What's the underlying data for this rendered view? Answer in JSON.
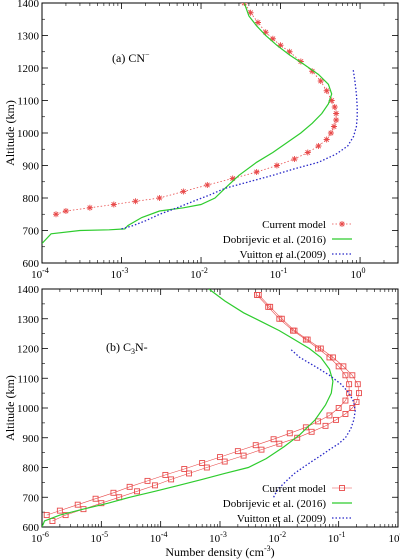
{
  "chart_data": [
    {
      "type": "line",
      "panel_label": "(a) CN",
      "panel_label_sup": "−",
      "ylabel": "Altitude (km)",
      "xlabel": "",
      "xscale": "log",
      "xlim": [
        0.0001,
        3
      ],
      "ylim": [
        600,
        1400
      ],
      "xticks": [
        {
          "value": 0.0001,
          "label_base": "10",
          "label_exp": "-4"
        },
        {
          "value": 0.001,
          "label_base": "10",
          "label_exp": "-3"
        },
        {
          "value": 0.01,
          "label_base": "10",
          "label_exp": "-2"
        },
        {
          "value": 0.1,
          "label_base": "10",
          "label_exp": "-1"
        },
        {
          "value": 1,
          "label_base": "10",
          "label_exp": "0"
        }
      ],
      "yticks": [
        600,
        700,
        800,
        900,
        1000,
        1100,
        1200,
        1300,
        1400
      ],
      "grid": false,
      "legend_position": "bottom-right",
      "series": [
        {
          "name": "Current model",
          "color": "#e84a4a",
          "style": "dotted-asterisk",
          "x": [
            0.00015,
            0.0002,
            0.0004,
            0.0008,
            0.0015,
            0.003,
            0.006,
            0.012,
            0.025,
            0.05,
            0.09,
            0.15,
            0.22,
            0.3,
            0.38,
            0.43,
            0.47,
            0.5,
            0.5,
            0.48,
            0.44,
            0.38,
            0.32,
            0.25,
            0.18,
            0.13,
            0.1,
            0.08,
            0.065,
            0.052,
            0.042,
            0.035
          ],
          "y": [
            750,
            760,
            770,
            780,
            790,
            800,
            820,
            840,
            860,
            880,
            900,
            920,
            940,
            960,
            980,
            1000,
            1020,
            1040,
            1060,
            1080,
            1100,
            1130,
            1160,
            1190,
            1220,
            1250,
            1270,
            1290,
            1310,
            1340,
            1370,
            1400
          ]
        },
        {
          "name": "Dobrijevic et al. (2016)",
          "color": "#2ecc2e",
          "style": "solid",
          "x": [
            0.0001,
            0.00013,
            0.0003,
            0.0007,
            0.0011,
            0.0012,
            0.0018,
            0.003,
            0.006,
            0.01,
            0.015,
            0.02,
            0.03,
            0.05,
            0.08,
            0.12,
            0.18,
            0.25,
            0.33,
            0.4,
            0.44,
            0.4,
            0.3,
            0.2,
            0.13,
            0.09,
            0.065,
            0.05,
            0.04,
            0.035
          ],
          "y": [
            660,
            690,
            700,
            702,
            705,
            715,
            740,
            760,
            770,
            780,
            800,
            830,
            870,
            910,
            940,
            970,
            1000,
            1030,
            1060,
            1090,
            1120,
            1150,
            1180,
            1210,
            1240,
            1270,
            1300,
            1330,
            1360,
            1400
          ]
        },
        {
          "name": "Vuitton et al.(2009)",
          "color": "#2828c8",
          "style": "dotted",
          "x": [
            0.001,
            0.0014,
            0.002,
            0.003,
            0.005,
            0.008,
            0.013,
            0.02,
            0.04,
            0.08,
            0.15,
            0.3,
            0.5,
            0.7,
            0.83,
            0.9,
            0.92,
            0.92,
            0.9,
            0.86,
            0.82
          ],
          "y": [
            705,
            715,
            730,
            750,
            770,
            790,
            810,
            830,
            850,
            870,
            890,
            910,
            935,
            960,
            990,
            1020,
            1050,
            1080,
            1120,
            1160,
            1195
          ]
        }
      ]
    },
    {
      "type": "line",
      "panel_label": "(b) C",
      "panel_label_sub": "3",
      "panel_label_end": "N-",
      "ylabel": "Altitude (km)",
      "xlabel": "Number density (cm",
      "xlabel_sup": "-3",
      "xlabel_end": ")",
      "xscale": "log",
      "xlim": [
        1e-06,
        1
      ],
      "ylim": [
        600,
        1400
      ],
      "xticks": [
        {
          "value": 1e-06,
          "label_base": "10",
          "label_exp": "-6"
        },
        {
          "value": 1e-05,
          "label_base": "10",
          "label_exp": "-5"
        },
        {
          "value": 0.0001,
          "label_base": "10",
          "label_exp": "-4"
        },
        {
          "value": 0.001,
          "label_base": "10",
          "label_exp": "-3"
        },
        {
          "value": 0.01,
          "label_base": "10",
          "label_exp": "-2"
        },
        {
          "value": 0.1,
          "label_base": "10",
          "label_exp": "-1"
        },
        {
          "value": 1,
          "label_base": "10",
          "label_exp": "0"
        }
      ],
      "yticks": [
        600,
        700,
        800,
        900,
        1000,
        1100,
        1200,
        1300,
        1400
      ],
      "grid": false,
      "legend_position": "bottom-right",
      "series": [
        {
          "name": "Current model",
          "color": "#e84a4a",
          "style": "square-markers",
          "x": [
            1.5e-06,
            2.5e-06,
            5e-06,
            1e-05,
            2e-05,
            4e-05,
            8e-05,
            0.00015,
            0.0003,
            0.0006,
            0.0012,
            0.0025,
            0.005,
            0.01,
            0.02,
            0.035,
            0.06,
            0.09,
            0.13,
            0.17,
            0.2,
            0.22,
            0.21,
            0.17,
            0.12,
            0.08,
            0.05,
            0.03,
            0.018,
            0.011,
            0.007,
            0.0045
          ],
          "y": [
            620,
            640,
            660,
            680,
            700,
            720,
            740,
            760,
            780,
            800,
            820,
            840,
            860,
            880,
            900,
            920,
            940,
            960,
            980,
            1000,
            1020,
            1050,
            1080,
            1110,
            1140,
            1170,
            1200,
            1230,
            1260,
            1300,
            1340,
            1380
          ]
        },
        {
          "name": "Current model",
          "color": "#e84a4a",
          "style": "square-markers",
          "x": [
            1.2e-06,
            2e-06,
            4e-06,
            8e-06,
            1.6e-05,
            3e-05,
            6e-05,
            0.00012,
            0.00025,
            0.0005,
            0.001,
            0.002,
            0.004,
            0.008,
            0.015,
            0.028,
            0.045,
            0.07,
            0.1,
            0.13,
            0.15,
            0.15,
            0.13,
            0.1,
            0.07,
            0.045,
            0.028,
            0.017,
            0.01,
            0.0065,
            0.0042
          ],
          "y": [
            640,
            655,
            675,
            695,
            715,
            735,
            755,
            775,
            795,
            815,
            835,
            855,
            875,
            895,
            915,
            935,
            955,
            975,
            1000,
            1025,
            1050,
            1080,
            1110,
            1140,
            1170,
            1200,
            1230,
            1260,
            1300,
            1340,
            1380
          ]
        },
        {
          "name": "Dobrijevic et al. (2016)",
          "color": "#2ecc2e",
          "style": "solid",
          "x": [
            1e-06,
            1.1e-06,
            2e-06,
            5e-06,
            1.3e-05,
            3e-05,
            8e-05,
            0.0002,
            0.0005,
            0.0012,
            0.003,
            0.006,
            0.012,
            0.022,
            0.04,
            0.06,
            0.075,
            0.08,
            0.07,
            0.05,
            0.032,
            0.018,
            0.01,
            0.005,
            0.0025,
            0.0012,
            0.00065
          ],
          "y": [
            600,
            620,
            640,
            660,
            680,
            700,
            720,
            740,
            760,
            780,
            800,
            830,
            870,
            910,
            960,
            1010,
            1050,
            1090,
            1130,
            1170,
            1200,
            1230,
            1260,
            1290,
            1320,
            1360,
            1400
          ]
        },
        {
          "name": "Vuitton et al. (2009)",
          "color": "#2828c8",
          "style": "dotted",
          "x": [
            0.008,
            0.009,
            0.011,
            0.014,
            0.018,
            0.025,
            0.035,
            0.05,
            0.07,
            0.1,
            0.13,
            0.16,
            0.18,
            0.19,
            0.18,
            0.15,
            0.11,
            0.07,
            0.04,
            0.022,
            0.015
          ],
          "y": [
            700,
            720,
            740,
            760,
            780,
            800,
            820,
            840,
            860,
            880,
            900,
            930,
            960,
            990,
            1020,
            1050,
            1080,
            1110,
            1140,
            1170,
            1200
          ]
        }
      ]
    }
  ]
}
